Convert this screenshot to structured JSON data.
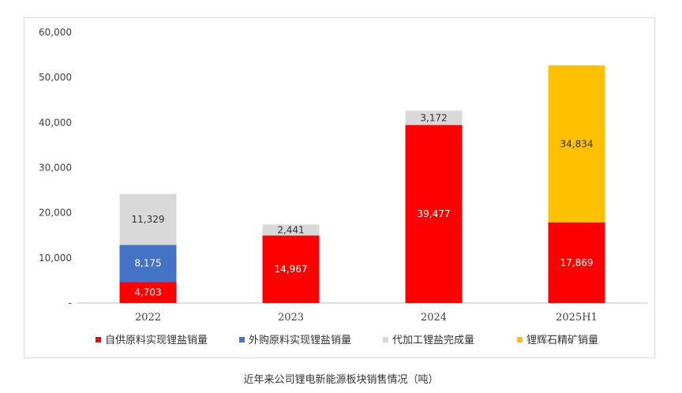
{
  "chart_data": {
    "type": "bar",
    "stacked": true,
    "categories": [
      "2022",
      "2023",
      "2024",
      "2025H1"
    ],
    "series": [
      {
        "name": "自供原料实现锂盐销量",
        "color": "#ff0000",
        "label_color": "#ffffff",
        "values": [
          4703,
          14967,
          39477,
          17869
        ],
        "labels": [
          "4,703",
          "14,967",
          "39,477",
          "17,869"
        ]
      },
      {
        "name": "外购原料实现锂盐销量",
        "color": "#4472c4",
        "label_color": "#ffffff",
        "values": [
          8175,
          null,
          null,
          null
        ],
        "labels": [
          "8,175",
          "",
          "",
          ""
        ]
      },
      {
        "name": "代加工锂盐完成量",
        "color": "#d9d9d9",
        "label_color": "#333333",
        "values": [
          11329,
          2441,
          3172,
          null
        ],
        "labels": [
          "11,329",
          "2,441",
          "3,172",
          ""
        ]
      },
      {
        "name": "锂辉石精矿销量",
        "color": "#ffc000",
        "label_color": "#333333",
        "values": [
          null,
          null,
          null,
          34834
        ],
        "labels": [
          "",
          "",
          "",
          "34,834"
        ]
      }
    ],
    "ylim": [
      0,
      60000
    ],
    "yticks": [
      0,
      10000,
      20000,
      30000,
      40000,
      50000,
      60000
    ],
    "ytick_labels": [
      "-",
      "10,000",
      "20,000",
      "30,000",
      "40,000",
      "50,000",
      "60,000"
    ],
    "legend_position": "bottom",
    "grid": false
  },
  "caption": "近年来公司锂电新能源板块销售情况（吨）"
}
